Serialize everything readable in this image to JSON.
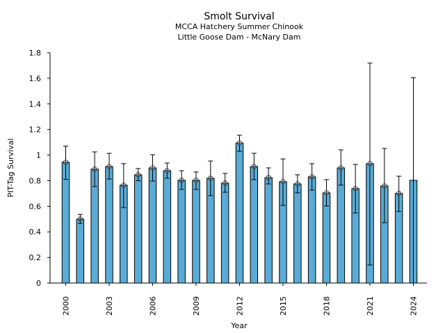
{
  "chart_data": {
    "type": "bar",
    "title": "Smolt Survival",
    "subtitle_lines": [
      "MCCA Hatchery Summer Chinook",
      "Little Goose Dam - McNary Dam"
    ],
    "xlabel": "Year",
    "ylabel": "PIT-Tag Survival",
    "ylim": [
      0,
      1.8
    ],
    "yticks": [
      0,
      0.2,
      0.4,
      0.6,
      0.8,
      1,
      1.2,
      1.4,
      1.6,
      1.8
    ],
    "ytick_labels": [
      "0",
      "0.2",
      "0.4",
      "0.6",
      "0.8",
      "1",
      "1.2",
      "1.4",
      "1.6",
      "1.8"
    ],
    "xtick_labels": [
      "2000",
      "2003",
      "2006",
      "2009",
      "2012",
      "2015",
      "2018",
      "2021",
      "2024"
    ],
    "grid": false,
    "bar_color": "#5aabd6",
    "categories": [
      2000,
      2001,
      2002,
      2003,
      2004,
      2005,
      2006,
      2007,
      2008,
      2009,
      2010,
      2011,
      2012,
      2013,
      2014,
      2015,
      2016,
      2017,
      2018,
      2019,
      2020,
      2021,
      2022,
      2023,
      2024
    ],
    "values": [
      0.944,
      0.5,
      0.89,
      0.91,
      0.765,
      0.846,
      0.9,
      0.878,
      0.803,
      0.803,
      0.819,
      0.781,
      1.095,
      0.91,
      0.824,
      0.792,
      0.775,
      0.83,
      0.705,
      0.9,
      0.738,
      0.933,
      0.759,
      0.7,
      0.803
    ],
    "error_upper": [
      1.07,
      0.537,
      1.025,
      1.014,
      0.933,
      0.895,
      1.003,
      0.938,
      0.878,
      0.868,
      0.954,
      0.857,
      1.155,
      1.014,
      0.9,
      0.97,
      0.846,
      0.933,
      0.808,
      1.041,
      0.927,
      1.719,
      1.052,
      0.835,
      1.605
    ],
    "error_lower": [
      0.81,
      0.466,
      0.754,
      0.813,
      0.59,
      0.8,
      0.797,
      0.819,
      0.732,
      0.732,
      0.683,
      0.71,
      1.03,
      0.808,
      0.775,
      0.607,
      0.705,
      0.727,
      0.602,
      0.765,
      0.548,
      0.141,
      0.472,
      0.559,
      0.0
    ],
    "point_marker": [
      true,
      true,
      true,
      true,
      true,
      true,
      true,
      true,
      true,
      true,
      true,
      true,
      true,
      true,
      true,
      true,
      true,
      true,
      true,
      true,
      true,
      true,
      true,
      true,
      false
    ]
  }
}
